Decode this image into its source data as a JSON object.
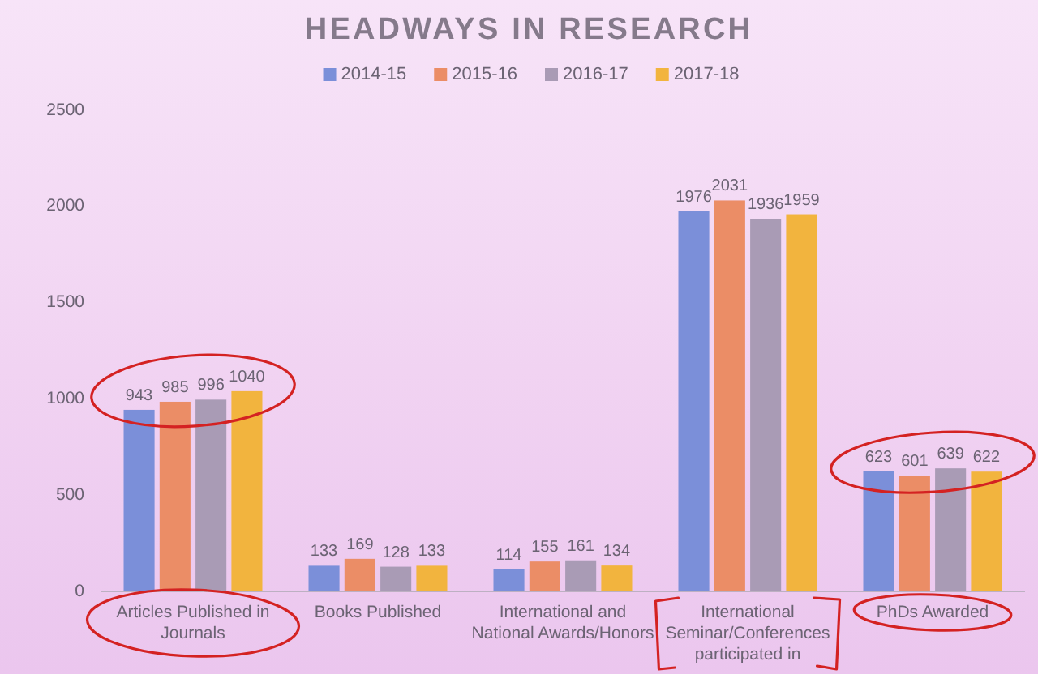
{
  "chart_data": {
    "type": "bar",
    "title": "HEADWAYS IN RESEARCH",
    "categories": [
      "Articles Published in Journals",
      "Books Published",
      "International and National Awards/Honors",
      "International Seminar/Conferences participated in",
      "PhDs Awarded"
    ],
    "series": [
      {
        "name": "2014-15",
        "color": "#7b8fd9",
        "values": [
          943,
          133,
          114,
          1976,
          623
        ]
      },
      {
        "name": "2015-16",
        "color": "#eb8d66",
        "values": [
          985,
          169,
          155,
          2031,
          601
        ]
      },
      {
        "name": "2016-17",
        "color": "#a99bb5",
        "values": [
          996,
          128,
          161,
          1936,
          639
        ]
      },
      {
        "name": "2017-18",
        "color": "#f2b43e",
        "values": [
          1040,
          133,
          134,
          1959,
          622
        ]
      }
    ],
    "ylim": [
      0,
      2500
    ],
    "yticks": [
      0,
      500,
      1000,
      1500,
      2000,
      2500
    ],
    "legend": "top",
    "data_labels": true
  }
}
